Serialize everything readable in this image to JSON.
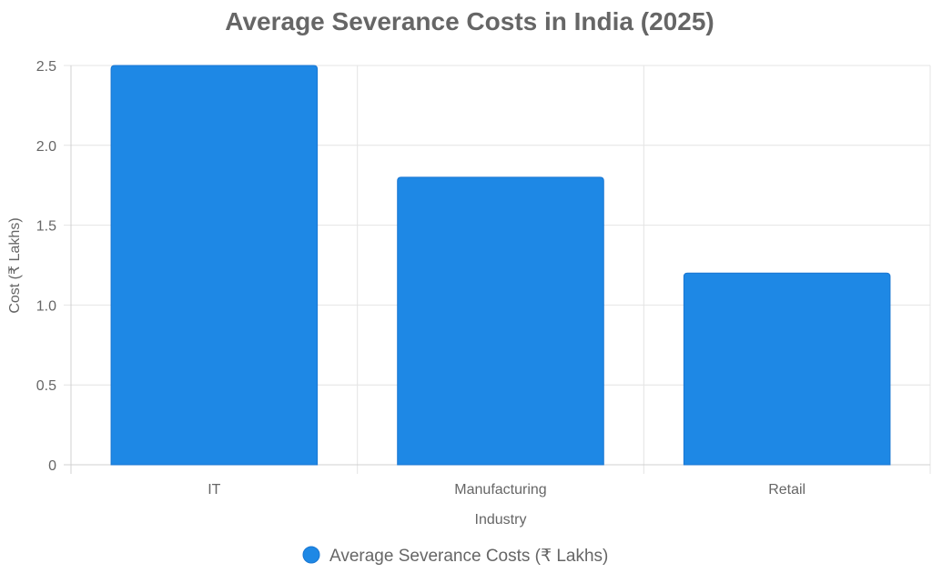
{
  "chart_data": {
    "type": "bar",
    "title": "Average Severance Costs in India (2025)",
    "categories": [
      "IT",
      "Manufacturing",
      "Retail"
    ],
    "series": [
      {
        "name": "Average Severance Costs (₹ Lakhs)",
        "values": [
          2.5,
          1.8,
          1.2
        ],
        "color": "#1e88e5",
        "border_color": "#1976d2"
      }
    ],
    "xlabel": "Industry",
    "ylabel": "Cost (₹ Lakhs)",
    "ylim": [
      0,
      2.5
    ],
    "yticks": [
      0,
      0.5,
      1.0,
      1.5,
      2.0,
      2.5
    ],
    "ytick_labels": [
      "0",
      "0.5",
      "1.0",
      "1.5",
      "2.0",
      "2.5"
    ],
    "grid": true,
    "legend_position": "bottom"
  }
}
